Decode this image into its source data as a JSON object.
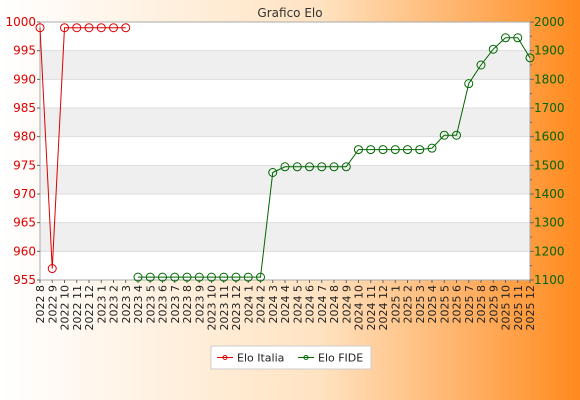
{
  "chart_data": {
    "type": "line",
    "title": "Grafico Elo",
    "categories": [
      "2022 8",
      "2022 9",
      "2022 10",
      "2022 11",
      "2022 12",
      "2023 1",
      "2023 2",
      "2023 3",
      "2023 4",
      "2023 5",
      "2023 6",
      "2023 7",
      "2023 8",
      "2023 9",
      "2023 10",
      "2023 11",
      "2023 12",
      "2024 1",
      "2024 2",
      "2024 3",
      "2024 4",
      "2024 5",
      "2024 6",
      "2024 7",
      "2024 8",
      "2024 9",
      "2024 10",
      "2024 11",
      "2024 12",
      "2025 1",
      "2025 2",
      "2025 3",
      "2025 4",
      "2025 5",
      "2025 6",
      "2025 7",
      "2025 8",
      "2025 9",
      "2025 10",
      "2025 11",
      "2025 12"
    ],
    "y_left": {
      "range": [
        955,
        1000
      ],
      "ticks": [
        "955",
        "960",
        "965",
        "970",
        "975",
        "980",
        "985",
        "990",
        "995",
        "1000"
      ]
    },
    "y_right": {
      "range": [
        1100,
        2000
      ],
      "ticks": [
        "1100",
        "1200",
        "1300",
        "1400",
        "1500",
        "1600",
        "1700",
        "1800",
        "1900",
        "2000"
      ]
    },
    "series": [
      {
        "name": "Elo Italia",
        "axis": "left",
        "color": "#dd0000",
        "values": [
          999,
          957,
          999,
          999,
          999,
          999,
          999,
          999,
          null,
          null,
          null,
          null,
          null,
          null,
          null,
          null,
          null,
          null,
          null,
          null,
          null,
          null,
          null,
          null,
          null,
          null,
          null,
          null,
          null,
          null,
          null,
          null,
          null,
          null,
          null,
          null,
          null,
          null,
          null,
          null,
          null
        ]
      },
      {
        "name": "Elo FIDE",
        "axis": "right",
        "color": "#006600",
        "values": [
          null,
          null,
          null,
          null,
          null,
          null,
          null,
          null,
          1110,
          1110,
          1110,
          1110,
          1110,
          1110,
          1110,
          1110,
          1110,
          1110,
          1110,
          1475,
          1495,
          1495,
          1495,
          1495,
          1495,
          1495,
          1555,
          1555,
          1555,
          1555,
          1555,
          1555,
          1560,
          1605,
          1605,
          1785,
          1850,
          1905,
          1945,
          1945,
          1875
        ]
      }
    ],
    "grid": true,
    "legend": "bottom-center"
  }
}
